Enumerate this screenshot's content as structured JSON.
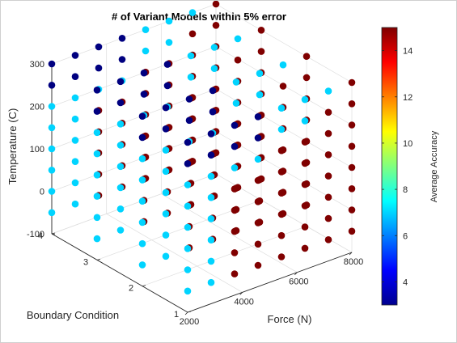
{
  "chart_data": {
    "type": "scatter3d",
    "title": "# of Variant Models within 5% error",
    "xlabel": "Force (N)",
    "ylabel": "Boundary Condition",
    "zlabel": "Temperature (C)",
    "colorbar_label": "Average Accuracy",
    "xlim": [
      2000,
      8000
    ],
    "ylim": [
      1,
      4
    ],
    "zlim": [
      -100,
      300
    ],
    "xticks": [
      2000,
      4000,
      6000,
      8000
    ],
    "xtick_labels": [
      "2000",
      "4000",
      "6000",
      "8000"
    ],
    "yticks": [
      1,
      2,
      3,
      4
    ],
    "ytick_labels": [
      "1",
      "2",
      "3",
      "4"
    ],
    "zticks": [
      -100,
      0,
      100,
      200,
      300
    ],
    "ztick_labels": [
      "-100",
      "0",
      "100",
      "200",
      "300"
    ],
    "colorbar_range": [
      3,
      15
    ],
    "colorbar_ticks": [
      4,
      6,
      8,
      10,
      12,
      14
    ],
    "colorbar_tick_labels": [
      "4",
      "6",
      "8",
      "10",
      "12",
      "14"
    ],
    "colormap": "jet",
    "grid": true,
    "point_grid": {
      "force_values": [
        2000,
        2857,
        3714,
        4571,
        5429,
        6286,
        7143,
        8000
      ],
      "boundary_values": [
        1,
        2,
        3,
        4
      ],
      "temperature_values": [
        -50,
        0,
        50,
        100,
        150,
        200,
        250,
        300
      ]
    },
    "color_rule": {
      "high_accuracy_value": 15,
      "mid_accuracy_value": 7,
      "low_accuracy_value": 3,
      "high_when_force_at_least": 3714,
      "high_max_temperature_base": 120,
      "high_max_temperature_per_1000N": 30,
      "low_when_temperature_at_least": 250,
      "low_when_force_at_most": 4571
    }
  }
}
